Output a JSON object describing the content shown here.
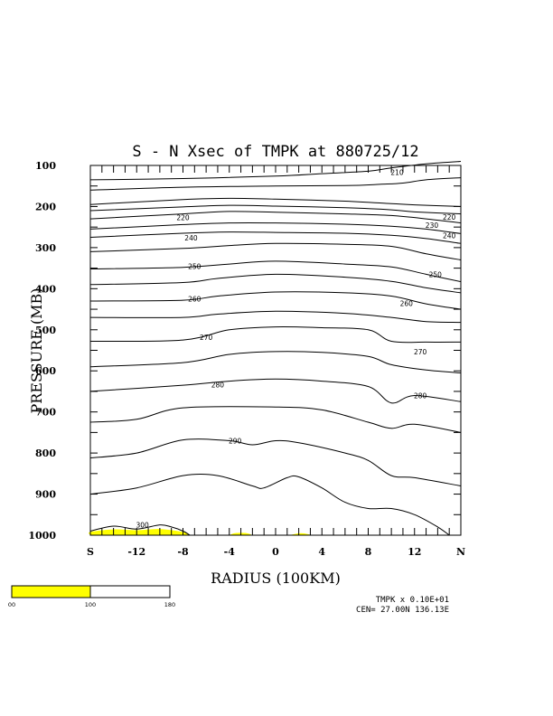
{
  "chart_data": {
    "type": "contour",
    "title": "S - N Xsec of TMPK at 880725/12",
    "xlabel": "RADIUS (100KM)",
    "ylabel": "PRESSURE (MB)",
    "x_ticks": [
      "S",
      "-12",
      "-8",
      "-4",
      "0",
      "4",
      "8",
      "12",
      "N"
    ],
    "x_range": [
      -16,
      16
    ],
    "y_ticks": [
      100,
      200,
      300,
      400,
      500,
      600,
      700,
      800,
      900,
      1000
    ],
    "y_range": [
      100,
      1000
    ],
    "y_inverted": true,
    "grid": false,
    "contour_interval": 10,
    "contours": [
      {
        "level": 210,
        "points": [
          [
            -16,
            135
          ],
          [
            -8,
            132
          ],
          [
            0,
            126
          ],
          [
            4,
            120
          ],
          [
            8,
            114
          ],
          [
            10,
            106
          ],
          [
            13,
            96
          ],
          [
            16,
            90
          ]
        ]
      },
      {
        "level": 210,
        "points": [
          [
            -16,
            160
          ],
          [
            -8,
            153
          ],
          [
            0,
            150
          ],
          [
            6,
            149
          ],
          [
            9,
            146
          ],
          [
            11,
            143
          ],
          [
            13,
            135
          ],
          [
            16,
            130
          ]
        ]
      },
      {
        "level": "",
        "points": [
          [
            -16,
            195
          ],
          [
            -8,
            183
          ],
          [
            -4,
            180
          ],
          [
            0,
            182
          ],
          [
            6,
            187
          ],
          [
            10,
            193
          ],
          [
            12,
            196
          ],
          [
            16,
            200
          ]
        ]
      },
      {
        "level": 220,
        "points": [
          [
            -16,
            210
          ],
          [
            -8,
            201
          ],
          [
            -4,
            197
          ],
          [
            0,
            199
          ],
          [
            6,
            203
          ],
          [
            10,
            208
          ],
          [
            12,
            213
          ],
          [
            16,
            218
          ]
        ]
      },
      {
        "level": "",
        "points": [
          [
            -16,
            230
          ],
          [
            -8,
            218
          ],
          [
            -4,
            212
          ],
          [
            0,
            214
          ],
          [
            6,
            218
          ],
          [
            10,
            222
          ],
          [
            13,
            230
          ],
          [
            16,
            240
          ]
        ]
      },
      {
        "level": 230,
        "points": [
          [
            -16,
            255
          ],
          [
            -8,
            244
          ],
          [
            -4,
            240
          ],
          [
            0,
            240
          ],
          [
            6,
            243
          ],
          [
            10,
            248
          ],
          [
            13,
            255
          ],
          [
            16,
            266
          ]
        ]
      },
      {
        "level": 240,
        "points": [
          [
            -16,
            275
          ],
          [
            -8,
            265
          ],
          [
            -4,
            262
          ],
          [
            0,
            263
          ],
          [
            6,
            265
          ],
          [
            10,
            270
          ],
          [
            13,
            278
          ],
          [
            16,
            290
          ]
        ]
      },
      {
        "level": "",
        "points": [
          [
            -16,
            310
          ],
          [
            -8,
            302
          ],
          [
            -4,
            295
          ],
          [
            0,
            290
          ],
          [
            6,
            292
          ],
          [
            10,
            297
          ],
          [
            13,
            315
          ],
          [
            16,
            330
          ]
        ]
      },
      {
        "level": 250,
        "points": [
          [
            -16,
            352
          ],
          [
            -8,
            348
          ],
          [
            -4,
            340
          ],
          [
            0,
            333
          ],
          [
            6,
            340
          ],
          [
            10,
            347
          ],
          [
            13,
            365
          ],
          [
            16,
            383
          ]
        ]
      },
      {
        "level": "",
        "points": [
          [
            -16,
            390
          ],
          [
            -8,
            385
          ],
          [
            -5,
            375
          ],
          [
            0,
            365
          ],
          [
            6,
            372
          ],
          [
            10,
            382
          ],
          [
            13,
            398
          ],
          [
            16,
            410
          ]
        ]
      },
      {
        "level": 260,
        "points": [
          [
            -16,
            430
          ],
          [
            -8,
            428
          ],
          [
            -5,
            418
          ],
          [
            0,
            408
          ],
          [
            6,
            410
          ],
          [
            10,
            418
          ],
          [
            13,
            437
          ],
          [
            16,
            450
          ]
        ]
      },
      {
        "level": "",
        "points": [
          [
            -16,
            470
          ],
          [
            -8,
            470
          ],
          [
            -5,
            462
          ],
          [
            0,
            455
          ],
          [
            6,
            460
          ],
          [
            10,
            470
          ],
          [
            13,
            480
          ],
          [
            16,
            482
          ]
        ]
      },
      {
        "level": 270,
        "points": [
          [
            -16,
            528
          ],
          [
            -8,
            525
          ],
          [
            -4,
            500
          ],
          [
            0,
            493
          ],
          [
            4,
            495
          ],
          [
            8,
            500
          ],
          [
            10,
            528
          ],
          [
            13,
            530
          ],
          [
            16,
            530
          ]
        ]
      },
      {
        "level": "",
        "points": [
          [
            -16,
            590
          ],
          [
            -8,
            580
          ],
          [
            -4,
            560
          ],
          [
            0,
            553
          ],
          [
            4,
            555
          ],
          [
            8,
            565
          ],
          [
            10,
            585
          ],
          [
            13,
            598
          ],
          [
            16,
            605
          ]
        ]
      },
      {
        "level": 280,
        "points": [
          [
            -16,
            650
          ],
          [
            -8,
            635
          ],
          [
            -4,
            625
          ],
          [
            0,
            620
          ],
          [
            4,
            625
          ],
          [
            8,
            638
          ],
          [
            10,
            678
          ],
          [
            12,
            660
          ],
          [
            16,
            675
          ]
        ]
      },
      {
        "level": "",
        "points": [
          [
            -16,
            725
          ],
          [
            -12,
            718
          ],
          [
            -8,
            690
          ],
          [
            0,
            688
          ],
          [
            4,
            695
          ],
          [
            8,
            725
          ],
          [
            10,
            740
          ],
          [
            12,
            730
          ],
          [
            16,
            750
          ]
        ]
      },
      {
        "level": 290,
        "points": [
          [
            -16,
            812
          ],
          [
            -12,
            800
          ],
          [
            -8,
            768
          ],
          [
            -4,
            770
          ],
          [
            -2,
            780
          ],
          [
            0,
            770
          ],
          [
            2,
            775
          ],
          [
            6,
            800
          ],
          [
            8,
            818
          ],
          [
            10,
            855
          ],
          [
            12,
            860
          ],
          [
            16,
            880
          ]
        ]
      },
      {
        "level": "",
        "points": [
          [
            -16,
            900
          ],
          [
            -12,
            885
          ],
          [
            -8,
            855
          ],
          [
            -5,
            855
          ],
          [
            -2,
            880
          ],
          [
            -1,
            885
          ],
          [
            1,
            860
          ],
          [
            2,
            858
          ],
          [
            4,
            885
          ],
          [
            6,
            920
          ],
          [
            8,
            935
          ],
          [
            10,
            935
          ],
          [
            12,
            950
          ],
          [
            14,
            980
          ],
          [
            15,
            1000
          ]
        ]
      },
      {
        "level": 300,
        "points": [
          [
            -16,
            990
          ],
          [
            -14,
            978
          ],
          [
            -12,
            985
          ],
          [
            -10,
            975
          ],
          [
            -9,
            980
          ],
          [
            -8,
            990
          ],
          [
            -7.4,
            1000
          ]
        ]
      }
    ],
    "contour_labels": [
      {
        "text": "210",
        "x": 10.5,
        "y": 116
      },
      {
        "text": "220",
        "x": -8.0,
        "y": 227
      },
      {
        "text": "220",
        "x": 15.0,
        "y": 225
      },
      {
        "text": "230",
        "x": 13.5,
        "y": 245
      },
      {
        "text": "240",
        "x": -7.3,
        "y": 276
      },
      {
        "text": "240",
        "x": 15.0,
        "y": 270
      },
      {
        "text": "250",
        "x": -7.0,
        "y": 345
      },
      {
        "text": "250",
        "x": 13.8,
        "y": 365
      },
      {
        "text": "260",
        "x": -7.0,
        "y": 425
      },
      {
        "text": "260",
        "x": 11.3,
        "y": 436
      },
      {
        "text": "270",
        "x": -6.0,
        "y": 518
      },
      {
        "text": "270",
        "x": 12.5,
        "y": 553
      },
      {
        "text": "280",
        "x": -5.0,
        "y": 634
      },
      {
        "text": "280",
        "x": 12.5,
        "y": 660
      },
      {
        "text": "290",
        "x": -3.5,
        "y": 770
      },
      {
        "text": "300",
        "x": -11.5,
        "y": 975
      }
    ],
    "shaded_regions": [
      {
        "color": "#ffff00",
        "points": [
          [
            -16,
            1000
          ],
          [
            -16,
            992
          ],
          [
            -14,
            986
          ],
          [
            -12,
            988
          ],
          [
            -10,
            985
          ],
          [
            -8,
            992
          ],
          [
            -7.4,
            1000
          ]
        ]
      },
      {
        "color": "#ffff00",
        "points": [
          [
            -4,
            1000
          ],
          [
            -3.5,
            995
          ],
          [
            -2.5,
            995
          ],
          [
            -2,
            1000
          ]
        ]
      },
      {
        "color": "#ffff00",
        "points": [
          [
            1.2,
            1000
          ],
          [
            2.2,
            995
          ],
          [
            3.2,
            1000
          ]
        ]
      }
    ],
    "colorbar": {
      "ticks": [
        "00",
        "100",
        "180"
      ],
      "segments": [
        {
          "color": "#ffff00"
        },
        {
          "color": "#ffffff"
        }
      ]
    },
    "scale_text": "TMPK x  0.10E+01",
    "center_text": "CEN= 27.00N  136.13E"
  }
}
